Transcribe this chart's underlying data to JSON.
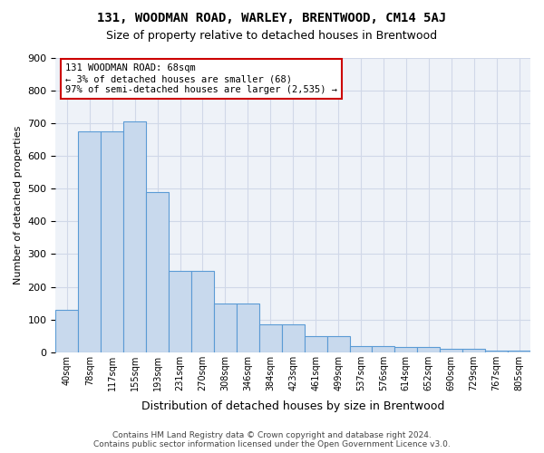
{
  "title": "131, WOODMAN ROAD, WARLEY, BRENTWOOD, CM14 5AJ",
  "subtitle": "Size of property relative to detached houses in Brentwood",
  "xlabel": "Distribution of detached houses by size in Brentwood",
  "ylabel": "Number of detached properties",
  "bin_labels": [
    "40sqm",
    "78sqm",
    "117sqm",
    "155sqm",
    "193sqm",
    "231sqm",
    "270sqm",
    "308sqm",
    "346sqm",
    "384sqm",
    "423sqm",
    "461sqm",
    "499sqm",
    "537sqm",
    "576sqm",
    "614sqm",
    "652sqm",
    "690sqm",
    "729sqm",
    "767sqm",
    "805sqm"
  ],
  "bar_values": [
    130,
    675,
    675,
    705,
    490,
    250,
    250,
    150,
    150,
    85,
    85,
    48,
    48,
    20,
    20,
    15,
    15,
    10,
    10,
    5,
    5
  ],
  "bar_color": "#c8d9ed",
  "bar_edge_color": "#5b9bd5",
  "annotation_title": "131 WOODMAN ROAD: 68sqm",
  "annotation_line1": "← 3% of detached houses are smaller (68)",
  "annotation_line2": "97% of semi-detached houses are larger (2,535) →",
  "annotation_box_color": "#ffffff",
  "annotation_box_edge_color": "#cc0000",
  "ylim": [
    0,
    900
  ],
  "yticks": [
    0,
    100,
    200,
    300,
    400,
    500,
    600,
    700,
    800,
    900
  ],
  "grid_color": "#d0d8e8",
  "background_color": "#eef2f8",
  "footer_line1": "Contains HM Land Registry data © Crown copyright and database right 2024.",
  "footer_line2": "Contains public sector information licensed under the Open Government Licence v3.0."
}
